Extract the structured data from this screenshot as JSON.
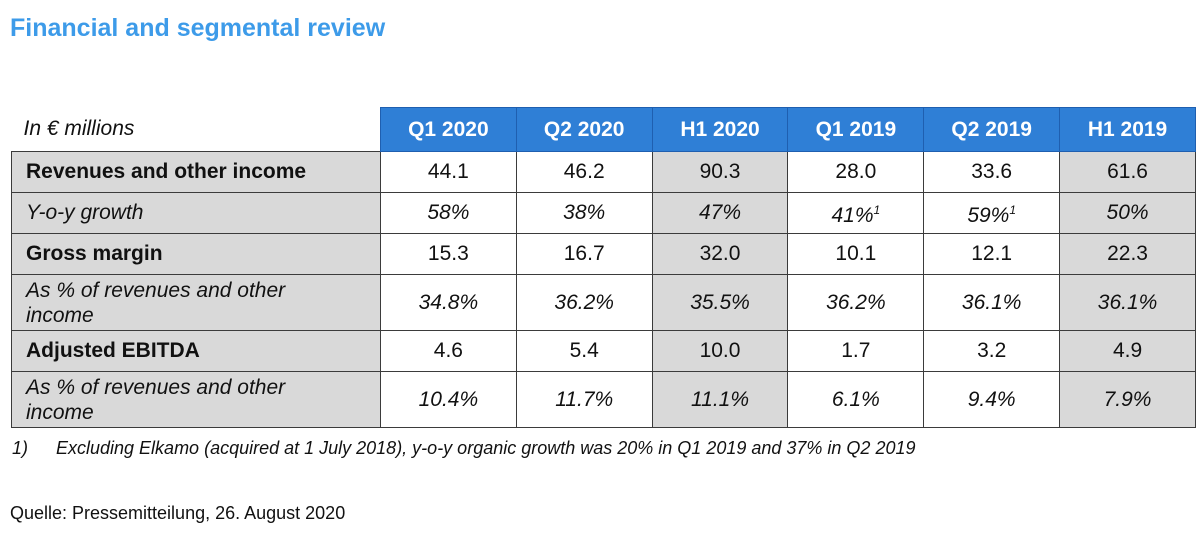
{
  "title": "Financial and segmental review",
  "table": {
    "unit_label": "In € millions",
    "columns": [
      "Q1 2020",
      "Q2 2020",
      "H1 2020",
      "Q1 2019",
      "Q2 2019",
      "H1 2019"
    ],
    "rows": [
      {
        "label": "Revenues and other income",
        "values": [
          "44.1",
          "46.2",
          "90.3",
          "28.0",
          "33.6",
          "61.6"
        ]
      },
      {
        "label": "Y-o-y growth",
        "values": [
          "58%",
          "38%",
          "47%",
          "41%",
          "59%",
          "50%"
        ],
        "footnote_marks": [
          "",
          "",
          "",
          "1",
          "1",
          ""
        ]
      },
      {
        "label": "Gross margin",
        "values": [
          "15.3",
          "16.7",
          "32.0",
          "10.1",
          "12.1",
          "22.3"
        ]
      },
      {
        "label_line1": "As % of revenues and other",
        "label_line2": "income",
        "values": [
          "34.8%",
          "36.2%",
          "35.5%",
          "36.2%",
          "36.1%",
          "36.1%"
        ]
      },
      {
        "label": "Adjusted EBITDA",
        "values": [
          "4.6",
          "5.4",
          "10.0",
          "1.7",
          "3.2",
          "4.9"
        ]
      },
      {
        "label_line1": "As % of revenues and other",
        "label_line2": "income",
        "values": [
          "10.4%",
          "11.7%",
          "11.1%",
          "6.1%",
          "9.4%",
          "7.9%"
        ]
      }
    ]
  },
  "footnote": {
    "marker": "1)",
    "text": "Excluding Elkamo (acquired at 1 July 2018), y-o-y organic growth was 20% in Q1 2019 and 37% in Q2 2019"
  },
  "source": "Quelle: Pressemitteilung, 26. August 2020"
}
